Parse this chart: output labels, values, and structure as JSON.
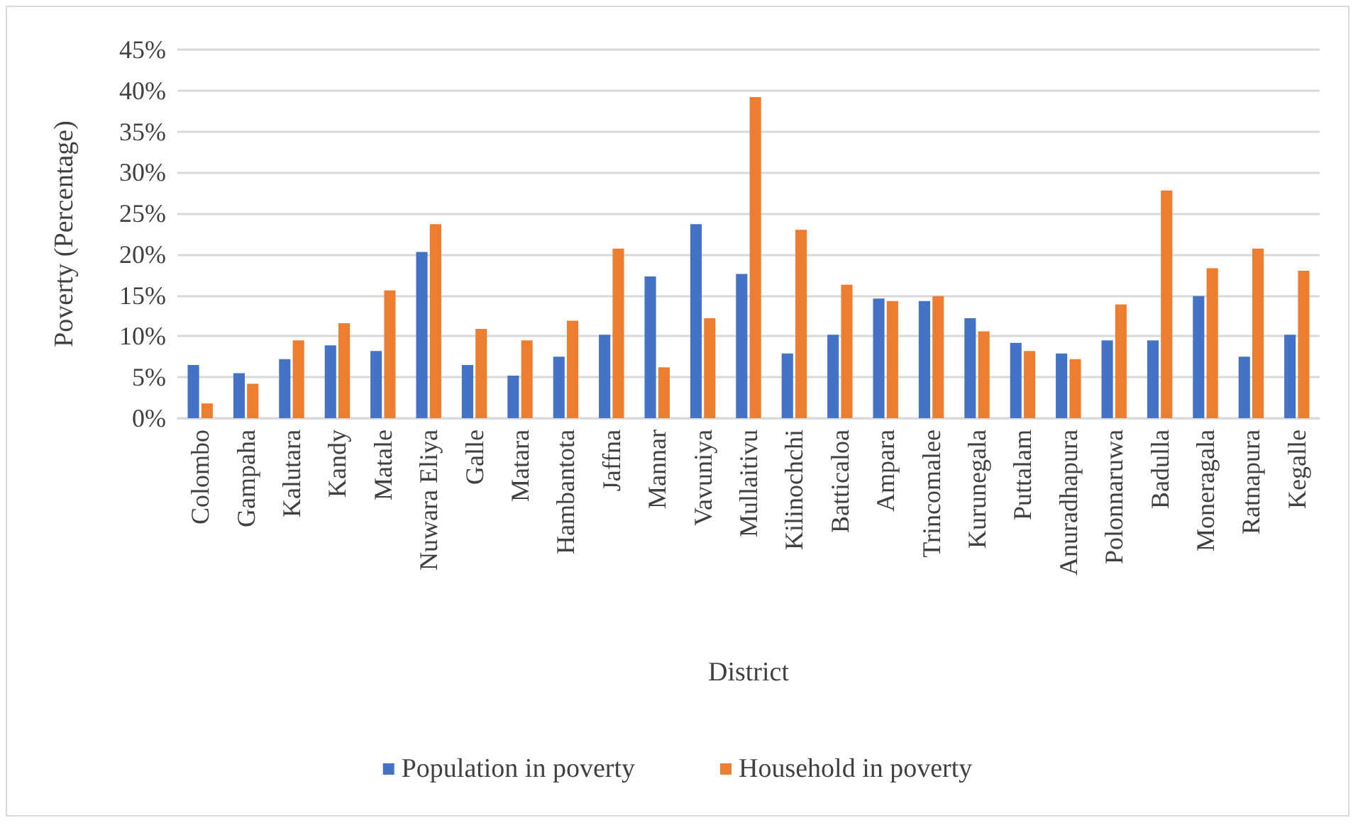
{
  "chart_data": {
    "type": "bar",
    "xlabel": "District",
    "ylabel": "Poverty (Percentage)",
    "categories": [
      "Colombo",
      "Gampaha",
      "Kalutara",
      "Kandy",
      "Matale",
      "Nuwara Eliya",
      "Galle",
      "Matara",
      "Hambantota",
      "Jaffna",
      "Mannar",
      "Vavuniya",
      "Mullaitivu",
      "Kilinochchi",
      "Batticaloa",
      "Ampara",
      "Trincomalee",
      "Kurunegala",
      "Puttalam",
      "Anuradhapura",
      "Polonnaruwa",
      "Badulla",
      "Moneragala",
      "Ratnapura",
      "Kegalle"
    ],
    "series": [
      {
        "name": "Population in poverty",
        "color": "#4472c4",
        "values": [
          6.5,
          5.5,
          7.2,
          8.9,
          8.2,
          20.3,
          6.5,
          5.2,
          7.5,
          10.2,
          17.3,
          23.7,
          17.6,
          7.9,
          10.2,
          14.6,
          14.3,
          12.2,
          9.2,
          7.9,
          9.5,
          9.5,
          14.9,
          7.5,
          10.2
        ]
      },
      {
        "name": "Household in poverty",
        "color": "#ed7d31",
        "values": [
          1.8,
          4.2,
          9.5,
          11.6,
          15.6,
          23.7,
          10.9,
          9.5,
          11.9,
          20.7,
          6.2,
          12.2,
          39.2,
          23.0,
          16.3,
          14.3,
          14.9,
          10.6,
          8.2,
          7.2,
          13.9,
          27.8,
          18.3,
          20.7,
          18.0
        ]
      }
    ],
    "ylim": [
      0,
      45
    ],
    "yticks": [
      {
        "value": 0,
        "label": "0%"
      },
      {
        "value": 5,
        "label": "5%"
      },
      {
        "value": 10,
        "label": "10%"
      },
      {
        "value": 15,
        "label": "15%"
      },
      {
        "value": 20,
        "label": "20%"
      },
      {
        "value": 25,
        "label": "25%"
      },
      {
        "value": 30,
        "label": "30%"
      },
      {
        "value": 35,
        "label": "35%"
      },
      {
        "value": 40,
        "label": "40%"
      },
      {
        "value": 45,
        "label": "45%"
      }
    ],
    "grid": "y",
    "legend": "bottom"
  }
}
